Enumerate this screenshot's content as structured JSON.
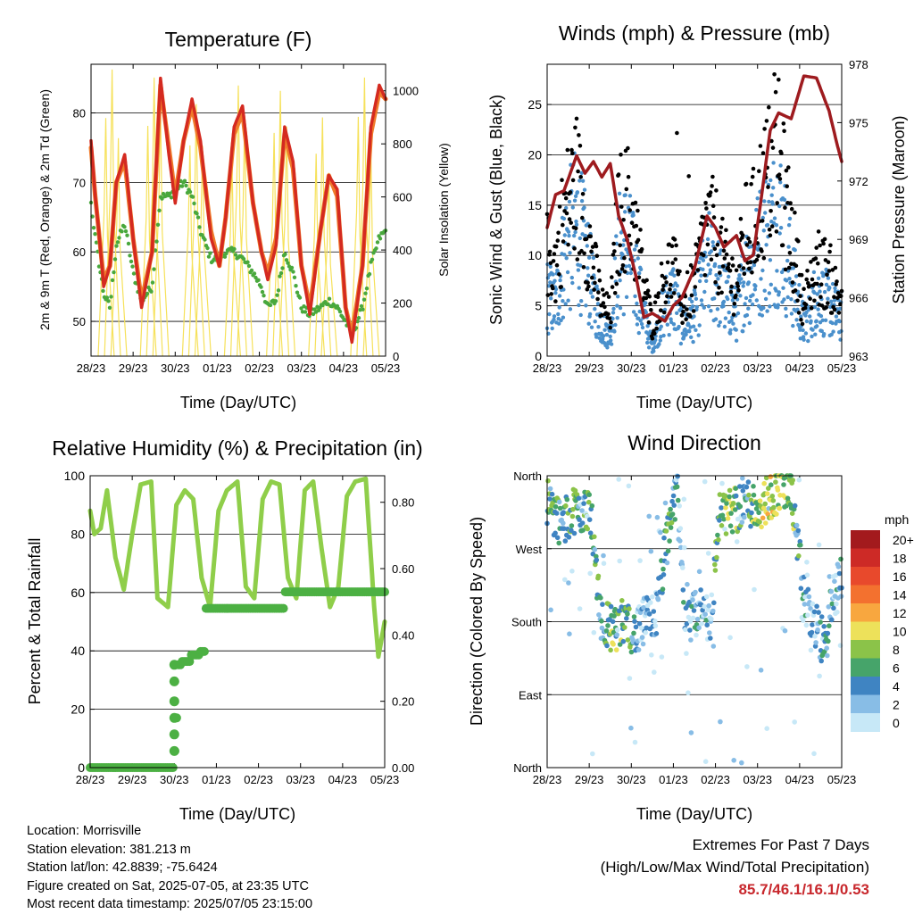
{
  "colors": {
    "temp2m": "#d42a20",
    "temp9m": "#f07a2a",
    "dew": "#49a83d",
    "solar": "#f6e15a",
    "wind": "#4a90cc",
    "gust": "#000000",
    "pressure": "#9e1b1f",
    "rh": "#8fce4a",
    "rain": "#4cb043",
    "extremes": "#c8282d"
  },
  "day_ticks": [
    "28/23",
    "29/23",
    "30/23",
    "01/23",
    "02/23",
    "03/23",
    "04/23",
    "05/23"
  ],
  "xlabel": "Time (Day/UTC)",
  "chart_data": [
    {
      "type": "line",
      "title": "Temperature (F)",
      "xlabel": "Time (Day/UTC)",
      "ylabel": "2m & 9m T (Red, Orange) & 2m Td (Green)",
      "y2label": "Solar Insolation (Yellow)",
      "ylim": [
        45,
        87
      ],
      "yticks": [
        50,
        60,
        70,
        80
      ],
      "y2lim": [
        0,
        1100
      ],
      "y2ticks": [
        0,
        200,
        400,
        600,
        800,
        1000
      ],
      "x": [
        0,
        0.1,
        0.2,
        0.3,
        0.45,
        0.6,
        0.8,
        1.0,
        1.2,
        1.45,
        1.65,
        1.85,
        2.0,
        2.2,
        2.4,
        2.6,
        2.85,
        3.05,
        3.2,
        3.4,
        3.6,
        3.85,
        4.05,
        4.2,
        4.4,
        4.6,
        4.8,
        5.0,
        5.2,
        5.45,
        5.65,
        5.85,
        6.05,
        6.2,
        6.45,
        6.65,
        6.85,
        7.0
      ],
      "series": [
        {
          "name": "2m T",
          "values": [
            76,
            68,
            62,
            55,
            58,
            70,
            74,
            62,
            52,
            60,
            85,
            74,
            67,
            76,
            82,
            76,
            62,
            58,
            65,
            78,
            81,
            67,
            60,
            56,
            61,
            78,
            73,
            58,
            51,
            63,
            71,
            69,
            52,
            47,
            58,
            78,
            84,
            82
          ]
        },
        {
          "name": "9m T",
          "values": [
            75,
            68,
            62,
            56,
            58,
            70,
            73,
            62,
            53,
            60,
            84,
            75,
            68,
            76,
            81,
            75,
            63,
            58,
            65,
            77,
            80,
            67,
            60,
            57,
            62,
            77,
            72,
            58,
            52,
            63,
            71,
            68,
            52,
            48,
            58,
            77,
            83,
            82
          ]
        },
        {
          "name": "2m Td",
          "values": [
            67,
            62,
            58,
            54,
            52,
            61,
            64,
            57,
            53,
            55,
            68,
            68,
            69,
            70,
            68,
            63,
            59,
            59,
            60,
            60,
            59,
            57,
            55,
            52,
            53,
            60,
            57,
            52,
            51,
            52,
            53,
            52,
            50,
            48,
            52,
            58,
            62,
            63
          ]
        },
        {
          "name": "Solar Insolation",
          "axis": "y2",
          "peaks": [
            1080,
            1050,
            950,
            1020,
            1000,
            900,
            1050
          ]
        }
      ]
    },
    {
      "type": "scatter",
      "title": "Winds (mph) & Pressure (mb)",
      "xlabel": "Time (Day/UTC)",
      "ylabel": "Sonic Wind & Gust (Blue, Black)",
      "y2label": "Station Pressure (Maroon)",
      "ylim": [
        0,
        29
      ],
      "yticks": [
        0,
        5,
        10,
        15,
        20,
        25
      ],
      "y2lim": [
        963,
        978
      ],
      "y2ticks": [
        963,
        966,
        969,
        972,
        975,
        978
      ],
      "x": [
        0,
        0.2,
        0.4,
        0.7,
        0.9,
        1.1,
        1.3,
        1.5,
        1.7,
        1.9,
        2.1,
        2.3,
        2.5,
        2.8,
        3.0,
        3.2,
        3.5,
        3.8,
        4.0,
        4.2,
        4.5,
        4.7,
        4.9,
        5.1,
        5.3,
        5.5,
        5.8,
        6.1,
        6.4,
        6.7,
        6.9,
        7.0
      ],
      "series": [
        {
          "name": "Station Pressure",
          "type": "line",
          "axis": "y2",
          "values": [
            969.6,
            971.3,
            971.5,
            973.3,
            972.4,
            973.0,
            972.2,
            972.9,
            970.2,
            969.0,
            967.2,
            965.0,
            965.2,
            964.8,
            965.6,
            966.0,
            967.5,
            970.2,
            969.6,
            968.6,
            969.2,
            967.9,
            968.2,
            971.3,
            974.6,
            975.5,
            975.2,
            977.4,
            977.3,
            975.6,
            973.8,
            973.0
          ]
        },
        {
          "name": "Sonic Wind",
          "type": "scatter",
          "mean": [
            6,
            5,
            10,
            13,
            10,
            6,
            3,
            2,
            10,
            11,
            8,
            4,
            1,
            5,
            6,
            3,
            4,
            9,
            8,
            6,
            4,
            8,
            9,
            11,
            12,
            14,
            8,
            3,
            6,
            5,
            4,
            4
          ]
        },
        {
          "name": "Gust",
          "type": "scatter",
          "mean": [
            10,
            9,
            14,
            17,
            13,
            9,
            5,
            4,
            14,
            15,
            12,
            7,
            3,
            8,
            9,
            5,
            7,
            13,
            12,
            9,
            7,
            12,
            13,
            16,
            18,
            19,
            12,
            5,
            9,
            8,
            6,
            6
          ]
        }
      ]
    },
    {
      "type": "line",
      "title": "Relative Humidity (%) & Precipitation (in)",
      "xlabel": "Time (Day/UTC)",
      "ylabel": "Percent & Total Rainfall",
      "ylim": [
        0,
        100
      ],
      "yticks": [
        0,
        20,
        40,
        60,
        80,
        100
      ],
      "y2lim": [
        0,
        0.88
      ],
      "y2ticks": [
        0.0,
        0.2,
        0.4,
        0.6,
        0.8
      ],
      "y2ticklabels": [
        "0.00",
        "0.20",
        "0.40",
        "0.60",
        "0.80"
      ],
      "x": [
        0,
        0.1,
        0.25,
        0.4,
        0.6,
        0.8,
        1.0,
        1.2,
        1.45,
        1.6,
        1.85,
        2.05,
        2.25,
        2.45,
        2.65,
        2.85,
        3.05,
        3.25,
        3.5,
        3.7,
        3.9,
        4.1,
        4.3,
        4.5,
        4.7,
        4.9,
        5.1,
        5.3,
        5.5,
        5.7,
        5.9,
        6.1,
        6.3,
        6.55,
        6.75,
        6.85,
        7.0
      ],
      "series": [
        {
          "name": "Relative Humidity",
          "values": [
            88,
            80,
            82,
            95,
            72,
            61,
            80,
            97,
            98,
            58,
            55,
            90,
            95,
            92,
            65,
            55,
            88,
            95,
            98,
            62,
            58,
            92,
            98,
            97,
            65,
            58,
            95,
            98,
            75,
            55,
            62,
            93,
            98,
            99,
            55,
            38,
            50
          ]
        },
        {
          "name": "Total Precipitation",
          "axis": "y2",
          "step_x": [
            0,
            1.95,
            2.0,
            2.03,
            2.06,
            2.1,
            2.15,
            2.4,
            2.6,
            2.72,
            3.0,
            3.5,
            3.8,
            4.6,
            5.0,
            7.0
          ],
          "step_values": [
            0.0,
            0.0,
            0.05,
            0.15,
            0.26,
            0.31,
            0.32,
            0.34,
            0.35,
            0.48,
            0.48,
            0.48,
            0.48,
            0.53,
            0.53,
            0.53
          ]
        }
      ]
    },
    {
      "type": "scatter",
      "title": "Wind Direction",
      "xlabel": "Time (Day/UTC)",
      "ylabel": "Direction (Colored By Speed)",
      "ylim": [
        0,
        360
      ],
      "yticks": [
        0,
        90,
        180,
        270,
        360
      ],
      "yticklabels": [
        "North",
        "East",
        "South",
        "West",
        "North"
      ],
      "x": [
        0,
        0.2,
        0.4,
        0.6,
        0.8,
        1.0,
        1.3,
        1.6,
        1.9,
        2.1,
        2.3,
        2.6,
        2.9,
        3.1,
        3.3,
        3.6,
        3.9,
        4.1,
        4.4,
        4.7,
        5.0,
        5.2,
        5.5,
        5.8,
        6.1,
        6.3,
        6.6,
        6.8,
        7.0
      ],
      "series": [
        {
          "name": "Direction",
          "values": [
            330,
            310,
            300,
            320,
            315,
            325,
            180,
            170,
            185,
            160,
            180,
            190,
            300,
            350,
            170,
            195,
            185,
            320,
            315,
            330,
            320,
            330,
            345,
            345,
            210,
            180,
            150,
            210,
            240
          ]
        },
        {
          "name": "Speed",
          "values": [
            6,
            7,
            5,
            8,
            6,
            7,
            5,
            8,
            7,
            4,
            3,
            3,
            7,
            4,
            3,
            4,
            3,
            8,
            9,
            5,
            9,
            10,
            10,
            8,
            4,
            3,
            5,
            4,
            5
          ]
        }
      ],
      "colorbar": {
        "title": "mph",
        "labels": [
          "20+",
          "18",
          "16",
          "14",
          "12",
          "10",
          "8",
          "6",
          "4",
          "2",
          "0"
        ],
        "colors": [
          "#a31a1d",
          "#cd2a26",
          "#e8492c",
          "#f3712f",
          "#f8a73f",
          "#ede15a",
          "#8bc349",
          "#46a46a",
          "#3f84c2",
          "#88bde6",
          "#c7e8f7"
        ]
      }
    }
  ],
  "info": {
    "location": "Location: Morrisville",
    "elevation": "Station elevation: 381.213 m",
    "latlon": "Station lat/lon: 42.8839; -75.6424",
    "created": "Figure created on Sat, 2025-07-05, at 23:35 UTC",
    "recent": "Most recent data timestamp: 2025/07/05 23:15:00"
  },
  "extremes": {
    "line1": "Extremes For Past 7 Days",
    "line2": "(High/Low/Max Wind/Total Precipitation)",
    "values": "85.7/46.1/16.1/0.53"
  }
}
